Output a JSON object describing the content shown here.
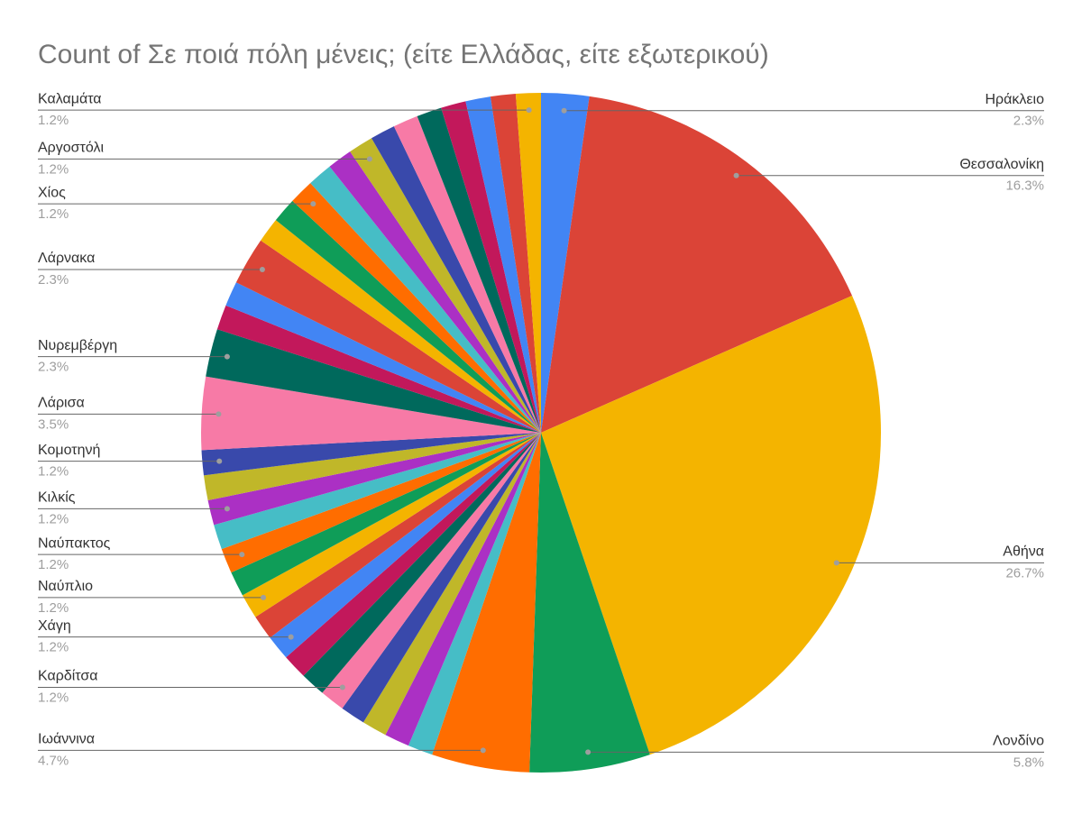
{
  "chart_data": {
    "type": "pie",
    "title": "Count of Σε ποιά πόλη μένεις; (είτε Ελλάδας, είτε εξωτερικού)",
    "categories": [
      "Ηράκλειο",
      "Θεσσαλονίκη",
      "Αθήνα",
      "Λονδίνο",
      "Ιωάννινα",
      null,
      null,
      null,
      null,
      "Καρδίτσα",
      null,
      null,
      "Χάγη",
      null,
      "Ναύπλιο",
      null,
      "Ναύπακτος",
      null,
      "Κιλκίς",
      null,
      "Κομοτηνή",
      "Λάρισα",
      "Νυρεμβέργη",
      null,
      null,
      "Λάρνακα",
      null,
      null,
      "Χίος",
      null,
      null,
      "Αργοστόλι",
      null,
      null,
      null,
      null,
      null,
      null,
      "Καλαμάτα"
    ],
    "values": [
      2.3,
      16.3,
      26.7,
      5.8,
      4.7,
      1.2,
      1.2,
      1.2,
      1.2,
      1.2,
      1.2,
      1.2,
      1.2,
      1.2,
      1.2,
      1.2,
      1.2,
      1.2,
      1.2,
      1.2,
      1.2,
      3.5,
      2.3,
      1.2,
      1.2,
      2.3,
      1.2,
      1.2,
      1.2,
      1.2,
      1.2,
      1.2,
      1.2,
      1.2,
      1.2,
      1.2,
      1.2,
      1.2,
      1.2
    ],
    "value_labels": [
      "2.3%",
      "16.3%",
      "26.7%",
      "5.8%",
      "4.7%",
      null,
      null,
      null,
      null,
      "1.2%",
      null,
      null,
      "1.2%",
      null,
      "1.2%",
      null,
      "1.2%",
      null,
      "1.2%",
      null,
      "1.2%",
      "3.5%",
      "2.3%",
      null,
      null,
      "2.3%",
      null,
      null,
      "1.2%",
      null,
      null,
      "1.2%",
      null,
      null,
      null,
      null,
      null,
      null,
      "1.2%"
    ],
    "colors": [
      "#4285f4",
      "#db4437",
      "#f4b400",
      "#0f9d58",
      "#ff6d00",
      "#46bdc6",
      "#ab30c4",
      "#c0b729",
      "#3949ab",
      "#f77aa6",
      "#00695c",
      "#c2185b"
    ]
  }
}
